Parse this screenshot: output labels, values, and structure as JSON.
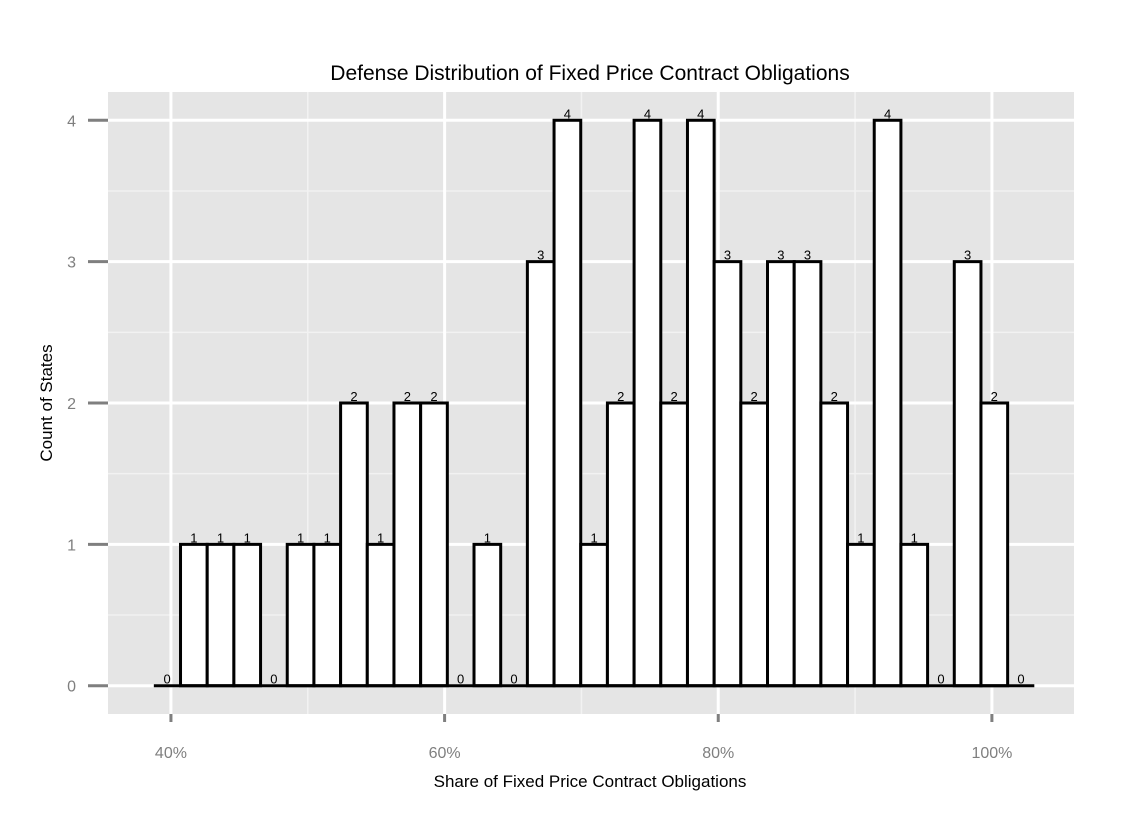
{
  "chart_data": {
    "type": "bar",
    "title": "Defense Distribution of Fixed Price Contract Obligations",
    "xlabel": "Share of Fixed Price Contract Obligations",
    "ylabel": "Count of States",
    "xlim": [
      0.354,
      1.06
    ],
    "ylim": [
      -0.2,
      4.2
    ],
    "x_ticks": [
      {
        "value": 0.4,
        "label": "40%"
      },
      {
        "value": 0.6,
        "label": "60%"
      },
      {
        "value": 0.8,
        "label": "80%"
      },
      {
        "value": 1.0,
        "label": "100%"
      }
    ],
    "y_ticks": [
      {
        "value": 0,
        "label": "0"
      },
      {
        "value": 1,
        "label": "1"
      },
      {
        "value": 2,
        "label": "2"
      },
      {
        "value": 3,
        "label": "3"
      },
      {
        "value": 4,
        "label": "4"
      }
    ],
    "bin_start": 0.3875,
    "bin_width": 0.0195,
    "values": [
      0,
      1,
      1,
      1,
      0,
      1,
      1,
      2,
      1,
      2,
      2,
      0,
      1,
      0,
      3,
      4,
      1,
      2,
      4,
      2,
      4,
      3,
      2,
      3,
      3,
      2,
      1,
      4,
      1,
      0,
      3,
      2,
      0
    ],
    "value_labels": [
      "0",
      "1",
      "1",
      "1",
      "0",
      "1",
      "1",
      "2",
      "1",
      "2",
      "2",
      "0",
      "1",
      "0",
      "3",
      "4",
      "1",
      "2",
      "4",
      "2",
      "4",
      "3",
      "2",
      "3",
      "3",
      "2",
      "1",
      "4",
      "1",
      "0",
      "3",
      "2",
      "0"
    ],
    "grid": true,
    "legend": "none",
    "colors": {
      "panel": "#e5e5e5",
      "grid_major": "#ffffff",
      "grid_minor": "#f2f2f2",
      "bar_fill": "#ffffff",
      "bar_outline": "#000000",
      "tick": "#7f7f7f"
    }
  }
}
